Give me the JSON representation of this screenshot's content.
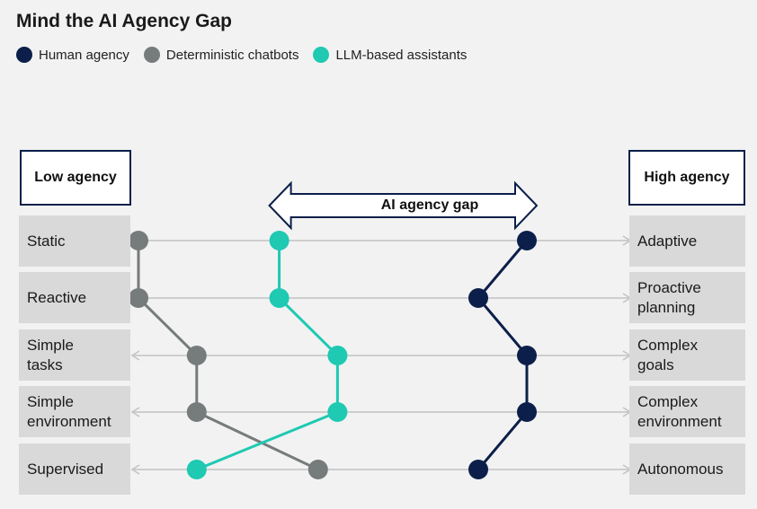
{
  "title": "Mind the AI Agency Gap",
  "low_agency_label": "Low agency",
  "high_agency_label": "High agency",
  "gap_label": "AI agency gap",
  "colors": {
    "human": "#0c1f4a",
    "chatbots": "#767b7b",
    "llm": "#1fc9b2",
    "axis": "#c2c2c2"
  },
  "chart_data": {
    "type": "line",
    "rows": [
      {
        "low": "Static",
        "high": "Adaptive"
      },
      {
        "low": "Reactive",
        "high": "Proactive planning"
      },
      {
        "low": "Simple tasks",
        "high": "Complex goals"
      },
      {
        "low": "Simple environment",
        "high": "Complex environment"
      },
      {
        "low": "Supervised",
        "high": "Autonomous"
      }
    ],
    "xlim": [
      0,
      1
    ],
    "series": [
      {
        "name": "Human agency",
        "color": "#0c1f4a",
        "values": [
          0.9,
          0.8,
          0.9,
          0.9,
          0.8
        ]
      },
      {
        "name": "Deterministic chatbots",
        "color": "#767b7b",
        "values": [
          0.1,
          0.1,
          0.22,
          0.22,
          0.47
        ]
      },
      {
        "name": "LLM-based assistants",
        "color": "#1fc9b2",
        "values": [
          0.39,
          0.39,
          0.51,
          0.51,
          0.22
        ]
      }
    ],
    "gap": {
      "from": 0.39,
      "to": 0.9
    }
  }
}
